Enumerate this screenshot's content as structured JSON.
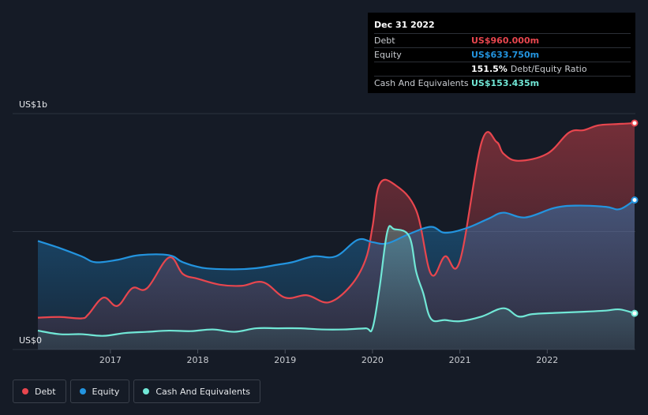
{
  "tooltip": {
    "date": "Dec 31 2022",
    "debt_label": "Debt",
    "debt_value": "US$960.000m",
    "equity_label": "Equity",
    "equity_value": "US$633.750m",
    "ratio_value": "151.5%",
    "ratio_label": "Debt/Equity Ratio",
    "cash_label": "Cash And Equivalents",
    "cash_value": "US$153.435m"
  },
  "colors": {
    "debt": "#e8464e",
    "equity": "#2394df",
    "cash": "#71e7d6",
    "background": "#151b26"
  },
  "chart_data": {
    "type": "area",
    "title": "",
    "y_axis_top_label": "US$1b",
    "y_axis_bottom_label": "US$0",
    "ylim": [
      0,
      1000
    ],
    "xlim": [
      2016.17,
      2023.0
    ],
    "grid": true,
    "x_tick_labels": [
      "2017",
      "2018",
      "2019",
      "2020",
      "2021",
      "2022"
    ],
    "x_ticks": [
      2017,
      2018,
      2019,
      2020,
      2021,
      2022
    ],
    "legend_position": "bottom-left",
    "series": [
      {
        "name": "Debt",
        "x": [
          2016.17,
          2016.42,
          2016.67,
          2016.75,
          2016.92,
          2017.08,
          2017.25,
          2017.42,
          2017.67,
          2017.83,
          2018.0,
          2018.25,
          2018.5,
          2018.75,
          2019.0,
          2019.25,
          2019.5,
          2019.75,
          2019.92,
          2020.0,
          2020.08,
          2020.25,
          2020.5,
          2020.67,
          2020.83,
          2021.0,
          2021.25,
          2021.42,
          2021.5,
          2021.67,
          2022.0,
          2022.25,
          2022.42,
          2022.58,
          2022.75,
          2022.92,
          2023.0
        ],
        "values": [
          135,
          138,
          132,
          150,
          220,
          185,
          260,
          260,
          390,
          320,
          300,
          275,
          270,
          285,
          220,
          230,
          200,
          270,
          380,
          520,
          700,
          700,
          590,
          320,
          395,
          375,
          880,
          880,
          830,
          800,
          830,
          920,
          930,
          950,
          955,
          958,
          960
        ]
      },
      {
        "name": "Equity",
        "x": [
          2016.17,
          2016.42,
          2016.67,
          2016.83,
          2017.08,
          2017.33,
          2017.67,
          2017.83,
          2018.08,
          2018.42,
          2018.67,
          2018.92,
          2019.08,
          2019.33,
          2019.58,
          2019.83,
          2020.0,
          2020.17,
          2020.42,
          2020.67,
          2020.83,
          2021.08,
          2021.33,
          2021.5,
          2021.75,
          2022.08,
          2022.33,
          2022.67,
          2022.83,
          2023.0
        ],
        "values": [
          460,
          430,
          395,
          370,
          380,
          400,
          400,
          370,
          345,
          340,
          345,
          360,
          370,
          395,
          395,
          465,
          455,
          450,
          490,
          520,
          495,
          515,
          555,
          580,
          560,
          600,
          610,
          605,
          595,
          633.75
        ]
      },
      {
        "name": "Cash And Equivalents",
        "x": [
          2016.17,
          2016.42,
          2016.67,
          2016.92,
          2017.17,
          2017.42,
          2017.67,
          2017.92,
          2018.17,
          2018.42,
          2018.67,
          2018.92,
          2019.17,
          2019.42,
          2019.67,
          2019.92,
          2020.0,
          2020.08,
          2020.17,
          2020.25,
          2020.42,
          2020.5,
          2020.58,
          2020.67,
          2020.83,
          2021.0,
          2021.25,
          2021.5,
          2021.67,
          2021.83,
          2022.08,
          2022.42,
          2022.67,
          2022.83,
          2023.0
        ],
        "values": [
          80,
          65,
          65,
          58,
          70,
          75,
          80,
          78,
          85,
          75,
          90,
          90,
          90,
          85,
          85,
          90,
          90,
          260,
          500,
          510,
          480,
          330,
          240,
          130,
          125,
          120,
          140,
          175,
          140,
          150,
          155,
          160,
          165,
          170,
          153.435
        ]
      }
    ]
  },
  "legend": {
    "debt": "Debt",
    "equity": "Equity",
    "cash": "Cash And Equivalents"
  }
}
